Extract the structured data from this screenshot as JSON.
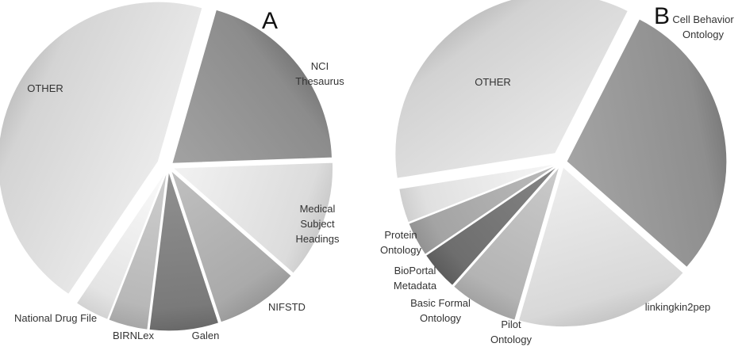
{
  "chart_data": [
    {
      "type": "pie",
      "title": "A",
      "exploded": true,
      "start_angle_deg": 16,
      "slices": [
        {
          "label": "NCI\nThesaurus",
          "value": 20,
          "shade": "#8c8c8c"
        },
        {
          "label": "Medical\nSubject\nHeadings",
          "value": 12,
          "shade": "#dcdcdc"
        },
        {
          "label": "NIFSTD",
          "value": 8.5,
          "shade": "#aaaaaa"
        },
        {
          "label": "Galen",
          "value": 7,
          "shade": "#7a7a7a"
        },
        {
          "label": "BIRNLex",
          "value": 4,
          "shade": "#b8b8b8"
        },
        {
          "label": "National Drug File",
          "value": 3.5,
          "shade": "#e4e4e4"
        },
        {
          "label": "OTHER",
          "value": 45,
          "shade": "#d4d4d4"
        }
      ]
    },
    {
      "type": "pie",
      "title": "B",
      "exploded": true,
      "start_angle_deg": 27,
      "slices": [
        {
          "label": "Cell Behavior\nOntology",
          "value": 29,
          "shade": "#8e8e8e"
        },
        {
          "label": "linkingkin2pep",
          "value": 18,
          "shade": "#d8d8d8"
        },
        {
          "label": "Pilot\nOntology",
          "value": 7,
          "shade": "#b4b4b4"
        },
        {
          "label": "Basic Formal\nOntology",
          "value": 4,
          "shade": "#6e6e6e"
        },
        {
          "label": "BioPortal\nMetadata",
          "value": 3.5,
          "shade": "#a4a4a4"
        },
        {
          "label": "Protein\nOntology",
          "value": 3.5,
          "shade": "#e0e0e0"
        },
        {
          "label": "OTHER",
          "value": 35,
          "shade": "#d2d2d2"
        }
      ]
    }
  ]
}
